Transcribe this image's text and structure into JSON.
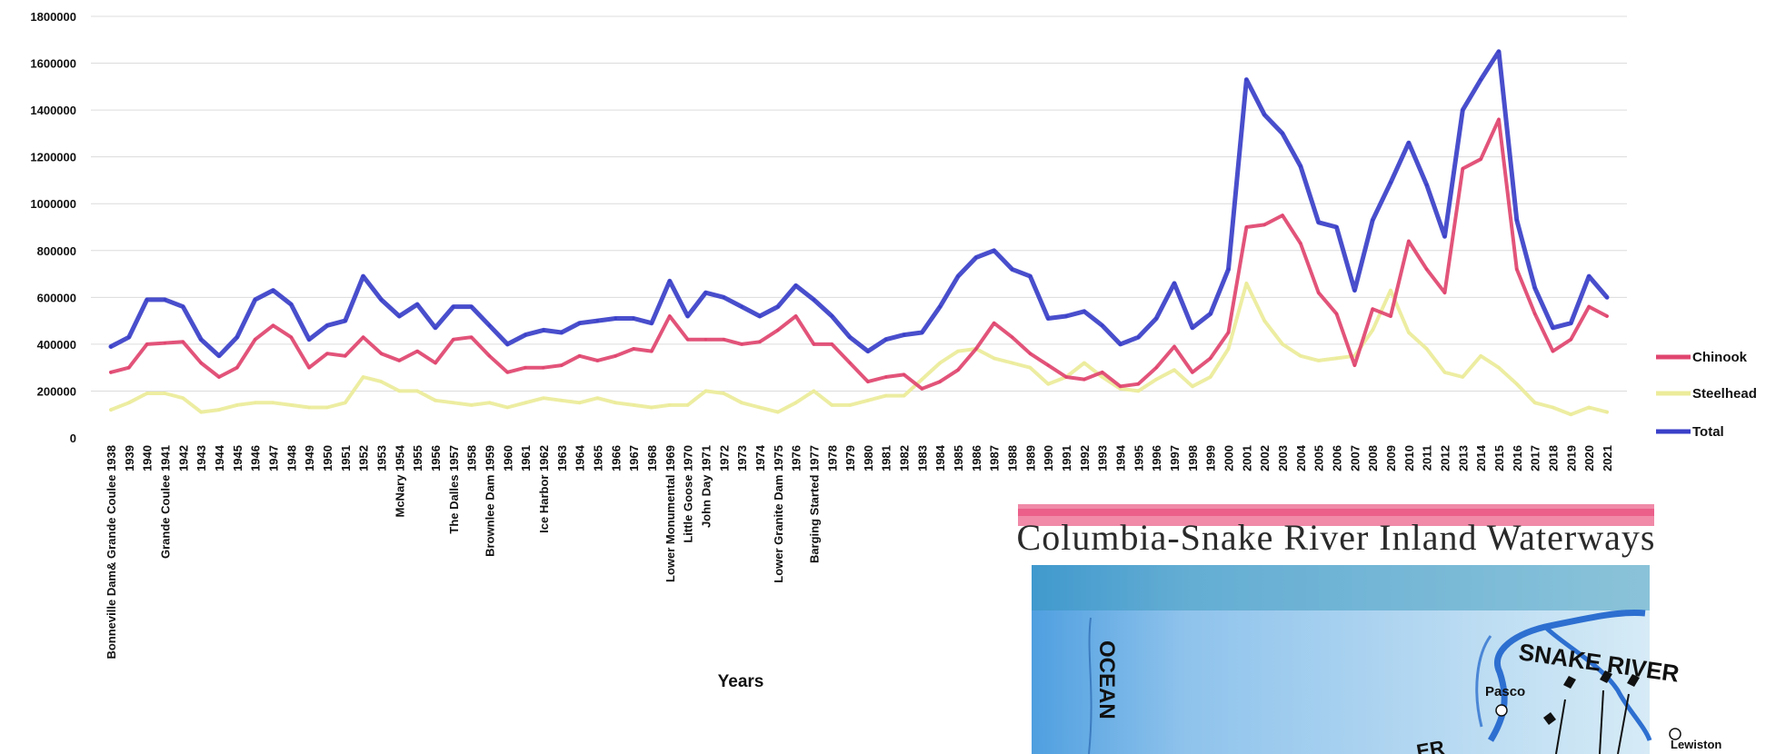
{
  "chart_data": {
    "type": "line",
    "title": "",
    "xlabel": "Years",
    "ylabel": "",
    "ylim": [
      0,
      1800000
    ],
    "yticks": [
      0,
      200000,
      400000,
      600000,
      800000,
      1000000,
      1200000,
      1400000,
      1600000,
      1800000
    ],
    "grid": true,
    "legend_position": "right",
    "categories": [
      "Bonneville Dam& Grande Coulee 1938",
      "1939",
      "1940",
      "Grande Coulee 1941",
      "1942",
      "1943",
      "1944",
      "1945",
      "1946",
      "1947",
      "1948",
      "1949",
      "1950",
      "1951",
      "1952",
      "1953",
      "McNary 1954",
      "1955",
      "1956",
      "The Dalles 1957",
      "1958",
      "Brownlee Dam 1959",
      "1960",
      "1961",
      "Ice Harbor 1962",
      "1963",
      "1964",
      "1965",
      "1966",
      "1967",
      "1968",
      "Lower Monumental 1969",
      "Little Goose 1970",
      "John Day 1971",
      "1972",
      "1973",
      "1974",
      "Lower Granite Dam 1975",
      "1976",
      "Barging Started 1977",
      "1978",
      "1979",
      "1980",
      "1981",
      "1982",
      "1983",
      "1984",
      "1985",
      "1986",
      "1987",
      "1988",
      "1989",
      "1990",
      "1991",
      "1992",
      "1993",
      "1994",
      "1995",
      "1996",
      "1997",
      "1998",
      "1999",
      "2000",
      "2001",
      "2002",
      "2003",
      "2004",
      "2005",
      "2006",
      "2007",
      "2008",
      "2009",
      "2010",
      "2011",
      "2012",
      "2013",
      "2014",
      "2015",
      "2016",
      "2017",
      "2018",
      "2019",
      "2020",
      "2021"
    ],
    "series": [
      {
        "name": "Chinook",
        "color": "#e0456f",
        "values": [
          280000,
          300000,
          400000,
          405000,
          410000,
          320000,
          260000,
          300000,
          420000,
          480000,
          430000,
          300000,
          360000,
          350000,
          430000,
          360000,
          330000,
          370000,
          320000,
          420000,
          430000,
          350000,
          280000,
          300000,
          300000,
          310000,
          350000,
          330000,
          350000,
          380000,
          370000,
          520000,
          420000,
          420000,
          420000,
          400000,
          410000,
          460000,
          520000,
          400000,
          400000,
          320000,
          240000,
          260000,
          270000,
          210000,
          240000,
          290000,
          380000,
          490000,
          430000,
          360000,
          310000,
          260000,
          250000,
          280000,
          220000,
          230000,
          300000,
          390000,
          280000,
          340000,
          450000,
          900000,
          910000,
          950000,
          830000,
          620000,
          530000,
          310000,
          550000,
          520000,
          840000,
          720000,
          620000,
          1150000,
          1190000,
          1360000,
          720000,
          530000,
          370000,
          420000,
          560000,
          520000
        ]
      },
      {
        "name": "Steelhead",
        "color": "#ecec9a",
        "values": [
          120000,
          150000,
          190000,
          190000,
          170000,
          110000,
          120000,
          140000,
          150000,
          150000,
          140000,
          130000,
          130000,
          150000,
          260000,
          240000,
          200000,
          200000,
          160000,
          150000,
          140000,
          150000,
          130000,
          150000,
          170000,
          160000,
          150000,
          170000,
          150000,
          140000,
          130000,
          140000,
          140000,
          200000,
          190000,
          150000,
          130000,
          110000,
          150000,
          200000,
          140000,
          140000,
          160000,
          180000,
          180000,
          250000,
          320000,
          370000,
          380000,
          340000,
          320000,
          300000,
          230000,
          260000,
          320000,
          260000,
          210000,
          200000,
          250000,
          290000,
          220000,
          260000,
          380000,
          660000,
          500000,
          400000,
          350000,
          330000,
          340000,
          350000,
          460000,
          630000,
          450000,
          380000,
          280000,
          260000,
          350000,
          300000,
          230000,
          150000,
          130000,
          100000,
          130000,
          110000
        ]
      },
      {
        "name": "Total",
        "color": "#3a3fc8",
        "values": [
          390000,
          430000,
          590000,
          590000,
          560000,
          420000,
          350000,
          430000,
          590000,
          630000,
          570000,
          420000,
          480000,
          500000,
          690000,
          590000,
          520000,
          570000,
          470000,
          560000,
          560000,
          480000,
          400000,
          440000,
          460000,
          450000,
          490000,
          500000,
          510000,
          510000,
          490000,
          670000,
          520000,
          620000,
          600000,
          560000,
          520000,
          560000,
          650000,
          590000,
          520000,
          430000,
          370000,
          420000,
          440000,
          450000,
          560000,
          690000,
          770000,
          800000,
          720000,
          690000,
          510000,
          520000,
          540000,
          480000,
          400000,
          430000,
          510000,
          660000,
          470000,
          530000,
          720000,
          1530000,
          1380000,
          1300000,
          1160000,
          920000,
          900000,
          630000,
          930000,
          1090000,
          1260000,
          1080000,
          860000,
          1400000,
          1530000,
          1650000,
          930000,
          640000,
          470000,
          490000,
          690000,
          600000
        ]
      }
    ]
  },
  "map_inset": {
    "title": "Columbia-Snake River Inland Waterways",
    "labels": {
      "snake_river": "SNAKE RIVER",
      "pasco": "Pasco",
      "lewiston": "Lewiston",
      "ocean": "OCEAN",
      "partial_river": "ER"
    }
  }
}
